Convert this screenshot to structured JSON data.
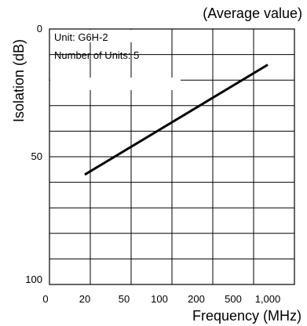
{
  "chart_data": {
    "type": "line",
    "header_note": "(Average value)",
    "xlabel": "Frequency (MHz)",
    "ylabel": "Isolation (dB)",
    "x_scale": "log",
    "y_inverted": true,
    "x_ticks": [
      "0",
      "20",
      "50",
      "100",
      "200",
      "500",
      "1,000"
    ],
    "y_ticks": [
      "0",
      "50",
      "100"
    ],
    "annotations": [
      "Unit: G6H-2",
      "Number of Units: 5"
    ],
    "ylim": [
      0,
      100
    ],
    "grid": true,
    "series": [
      {
        "x": [
          20,
          1000
        ],
        "y": [
          57,
          14
        ]
      }
    ]
  }
}
